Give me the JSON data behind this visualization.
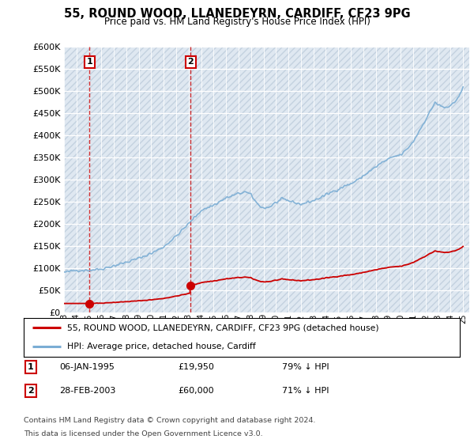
{
  "title": "55, ROUND WOOD, LLANEDEYRN, CARDIFF, CF23 9PG",
  "subtitle": "Price paid vs. HM Land Registry's House Price Index (HPI)",
  "legend_line1": "55, ROUND WOOD, LLANEDEYRN, CARDIFF, CF23 9PG (detached house)",
  "legend_line2": "HPI: Average price, detached house, Cardiff",
  "footer1": "Contains HM Land Registry data © Crown copyright and database right 2024.",
  "footer2": "This data is licensed under the Open Government Licence v3.0.",
  "table_rows": [
    {
      "num": "1",
      "date": "06-JAN-1995",
      "price": "£19,950",
      "hpi": "79% ↓ HPI"
    },
    {
      "num": "2",
      "date": "28-FEB-2003",
      "price": "£60,000",
      "hpi": "71% ↓ HPI"
    }
  ],
  "ylim": [
    0,
    600000
  ],
  "yticks": [
    0,
    50000,
    100000,
    150000,
    200000,
    250000,
    300000,
    350000,
    400000,
    450000,
    500000,
    550000,
    600000
  ],
  "hpi_color": "#7aadd4",
  "sale_color": "#cc0000",
  "dashed_color": "#cc0000",
  "marker1_x": 1995.04,
  "marker1_y": 19950,
  "marker2_x": 2003.16,
  "marker2_y": 60000,
  "xlim_left": 1993.0,
  "xlim_right": 2025.5,
  "hatch_bg": "#dce6f0",
  "plot_bg": "#e8eef5"
}
